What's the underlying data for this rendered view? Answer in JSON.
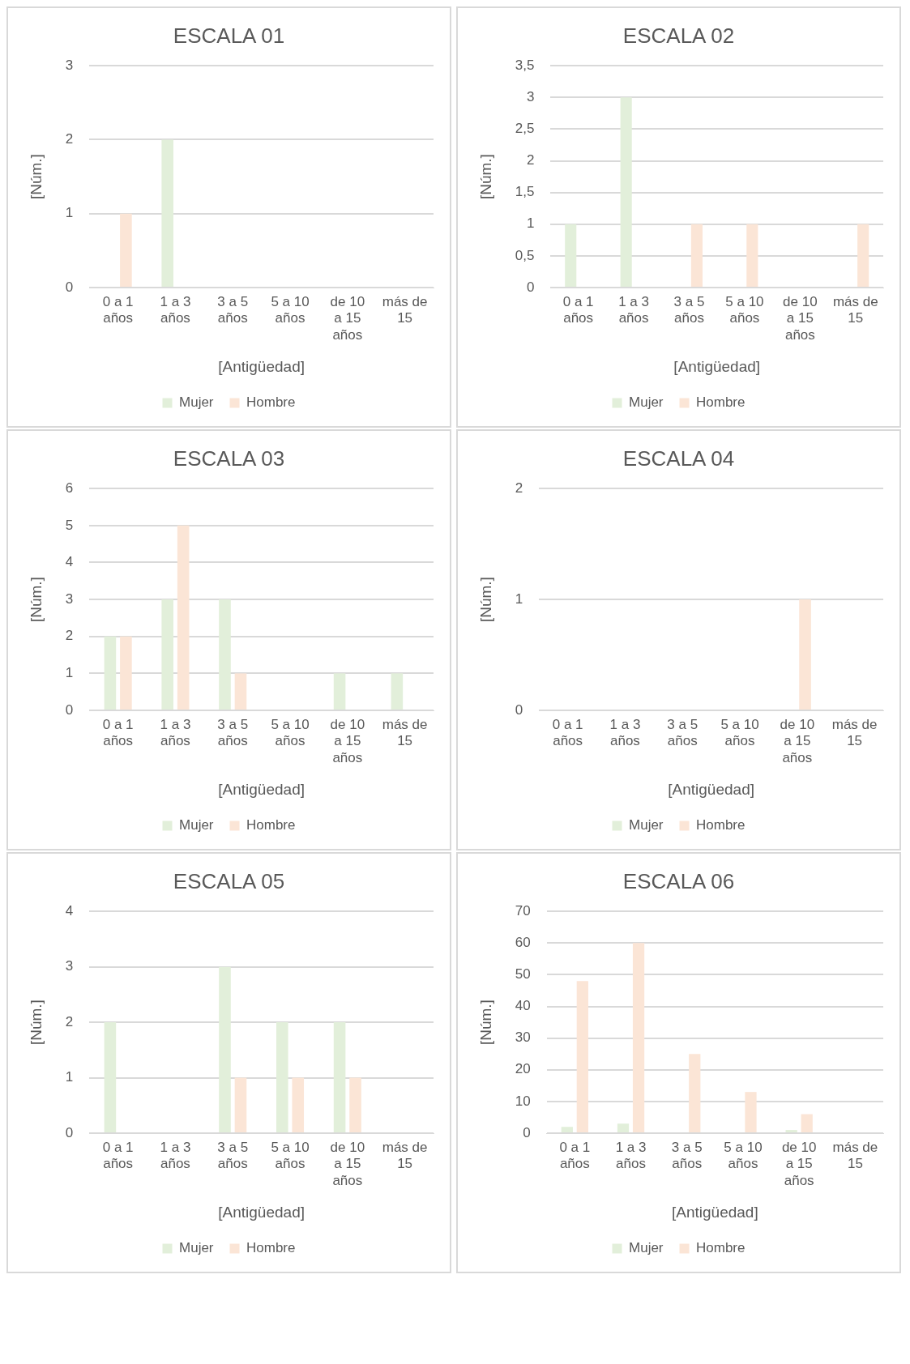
{
  "chart_data": [
    {
      "type": "bar",
      "title": "ESCALA 01",
      "xlabel": "[Antigüedad]",
      "ylabel": "[Núm.]",
      "categories": [
        "0 a 1 años",
        "1 a 3 años",
        "3 a 5 años",
        "5 a 10 años",
        "de 10 a 15 años",
        "más de 15"
      ],
      "series": [
        {
          "name": "Mujer",
          "color": "#e2efda",
          "values": [
            0,
            2,
            0,
            0,
            0,
            0
          ]
        },
        {
          "name": "Hombre",
          "color": "#fbe5d6",
          "values": [
            1,
            0,
            0,
            0,
            0,
            0
          ]
        }
      ],
      "ylim": [
        0,
        3
      ],
      "yticks": [
        0,
        1,
        2,
        3
      ],
      "grid": "y",
      "legend": "bottom"
    },
    {
      "type": "bar",
      "title": "ESCALA 02",
      "xlabel": "[Antigüedad]",
      "ylabel": "[Núm.]",
      "categories": [
        "0 a 1 años",
        "1 a 3 años",
        "3 a 5 años",
        "5 a 10 años",
        "de 10 a 15 años",
        "más de 15"
      ],
      "series": [
        {
          "name": "Mujer",
          "color": "#e2efda",
          "values": [
            1,
            3,
            0,
            0,
            0,
            0
          ]
        },
        {
          "name": "Hombre",
          "color": "#fbe5d6",
          "values": [
            0,
            0,
            1,
            1,
            0,
            1
          ]
        }
      ],
      "ylim": [
        0,
        3.5
      ],
      "yticks": [
        0,
        {
          "value": 0.5,
          "label": "0,5"
        },
        1,
        {
          "value": 1.5,
          "label": "1,5"
        },
        2,
        {
          "value": 2.5,
          "label": "2,5"
        },
        3,
        {
          "value": 3.5,
          "label": "3,5"
        }
      ],
      "grid": "y",
      "legend": "bottom"
    },
    {
      "type": "bar",
      "title": "ESCALA 03",
      "xlabel": "[Antigüedad]",
      "ylabel": "[Núm.]",
      "categories": [
        "0 a 1 años",
        "1 a 3 años",
        "3 a 5 años",
        "5 a 10 años",
        "de 10 a 15 años",
        "más de 15"
      ],
      "series": [
        {
          "name": "Mujer",
          "color": "#e2efda",
          "values": [
            2,
            3,
            3,
            0,
            1,
            1
          ]
        },
        {
          "name": "Hombre",
          "color": "#fbe5d6",
          "values": [
            2,
            5,
            1,
            0,
            0,
            0
          ]
        }
      ],
      "ylim": [
        0,
        6
      ],
      "yticks": [
        0,
        1,
        2,
        3,
        4,
        5,
        6
      ],
      "grid": "y",
      "legend": "bottom"
    },
    {
      "type": "bar",
      "title": "ESCALA 04",
      "xlabel": "[Antigüedad]",
      "ylabel": "[Núm.]",
      "categories": [
        "0 a 1 años",
        "1 a 3 años",
        "3 a 5 años",
        "5 a 10 años",
        "de 10 a 15 años",
        "más de 15"
      ],
      "series": [
        {
          "name": "Mujer",
          "color": "#e2efda",
          "values": [
            0,
            0,
            0,
            0,
            0,
            0
          ]
        },
        {
          "name": "Hombre",
          "color": "#fbe5d6",
          "values": [
            0,
            0,
            0,
            0,
            1,
            0
          ]
        }
      ],
      "ylim": [
        0,
        2
      ],
      "yticks": [
        0,
        1,
        2
      ],
      "grid": "y",
      "legend": "bottom"
    },
    {
      "type": "bar",
      "title": "ESCALA 05",
      "xlabel": "[Antigüedad]",
      "ylabel": "[Núm.]",
      "categories": [
        "0 a 1 años",
        "1 a 3 años",
        "3 a 5 años",
        "5 a 10 años",
        "de 10 a 15 años",
        "más de 15"
      ],
      "series": [
        {
          "name": "Mujer",
          "color": "#e2efda",
          "values": [
            2,
            0,
            3,
            2,
            2,
            0
          ]
        },
        {
          "name": "Hombre",
          "color": "#fbe5d6",
          "values": [
            0,
            0,
            1,
            1,
            1,
            0
          ]
        }
      ],
      "ylim": [
        0,
        4
      ],
      "yticks": [
        0,
        1,
        2,
        3,
        4
      ],
      "grid": "y",
      "legend": "bottom"
    },
    {
      "type": "bar",
      "title": "ESCALA 06",
      "xlabel": "[Antigüedad]",
      "ylabel": "[Núm.]",
      "categories": [
        "0 a 1 años",
        "1 a 3 años",
        "3 a 5 años",
        "5 a 10 años",
        "de 10 a 15 años",
        "más de 15"
      ],
      "series": [
        {
          "name": "Mujer",
          "color": "#e2efda",
          "values": [
            2,
            3,
            0,
            0,
            1,
            0
          ]
        },
        {
          "name": "Hombre",
          "color": "#fbe5d6",
          "values": [
            48,
            60,
            25,
            13,
            6,
            0
          ]
        }
      ],
      "ylim": [
        0,
        70
      ],
      "yticks": [
        0,
        10,
        20,
        30,
        40,
        50,
        60,
        70
      ],
      "grid": "y",
      "legend": "bottom"
    }
  ]
}
